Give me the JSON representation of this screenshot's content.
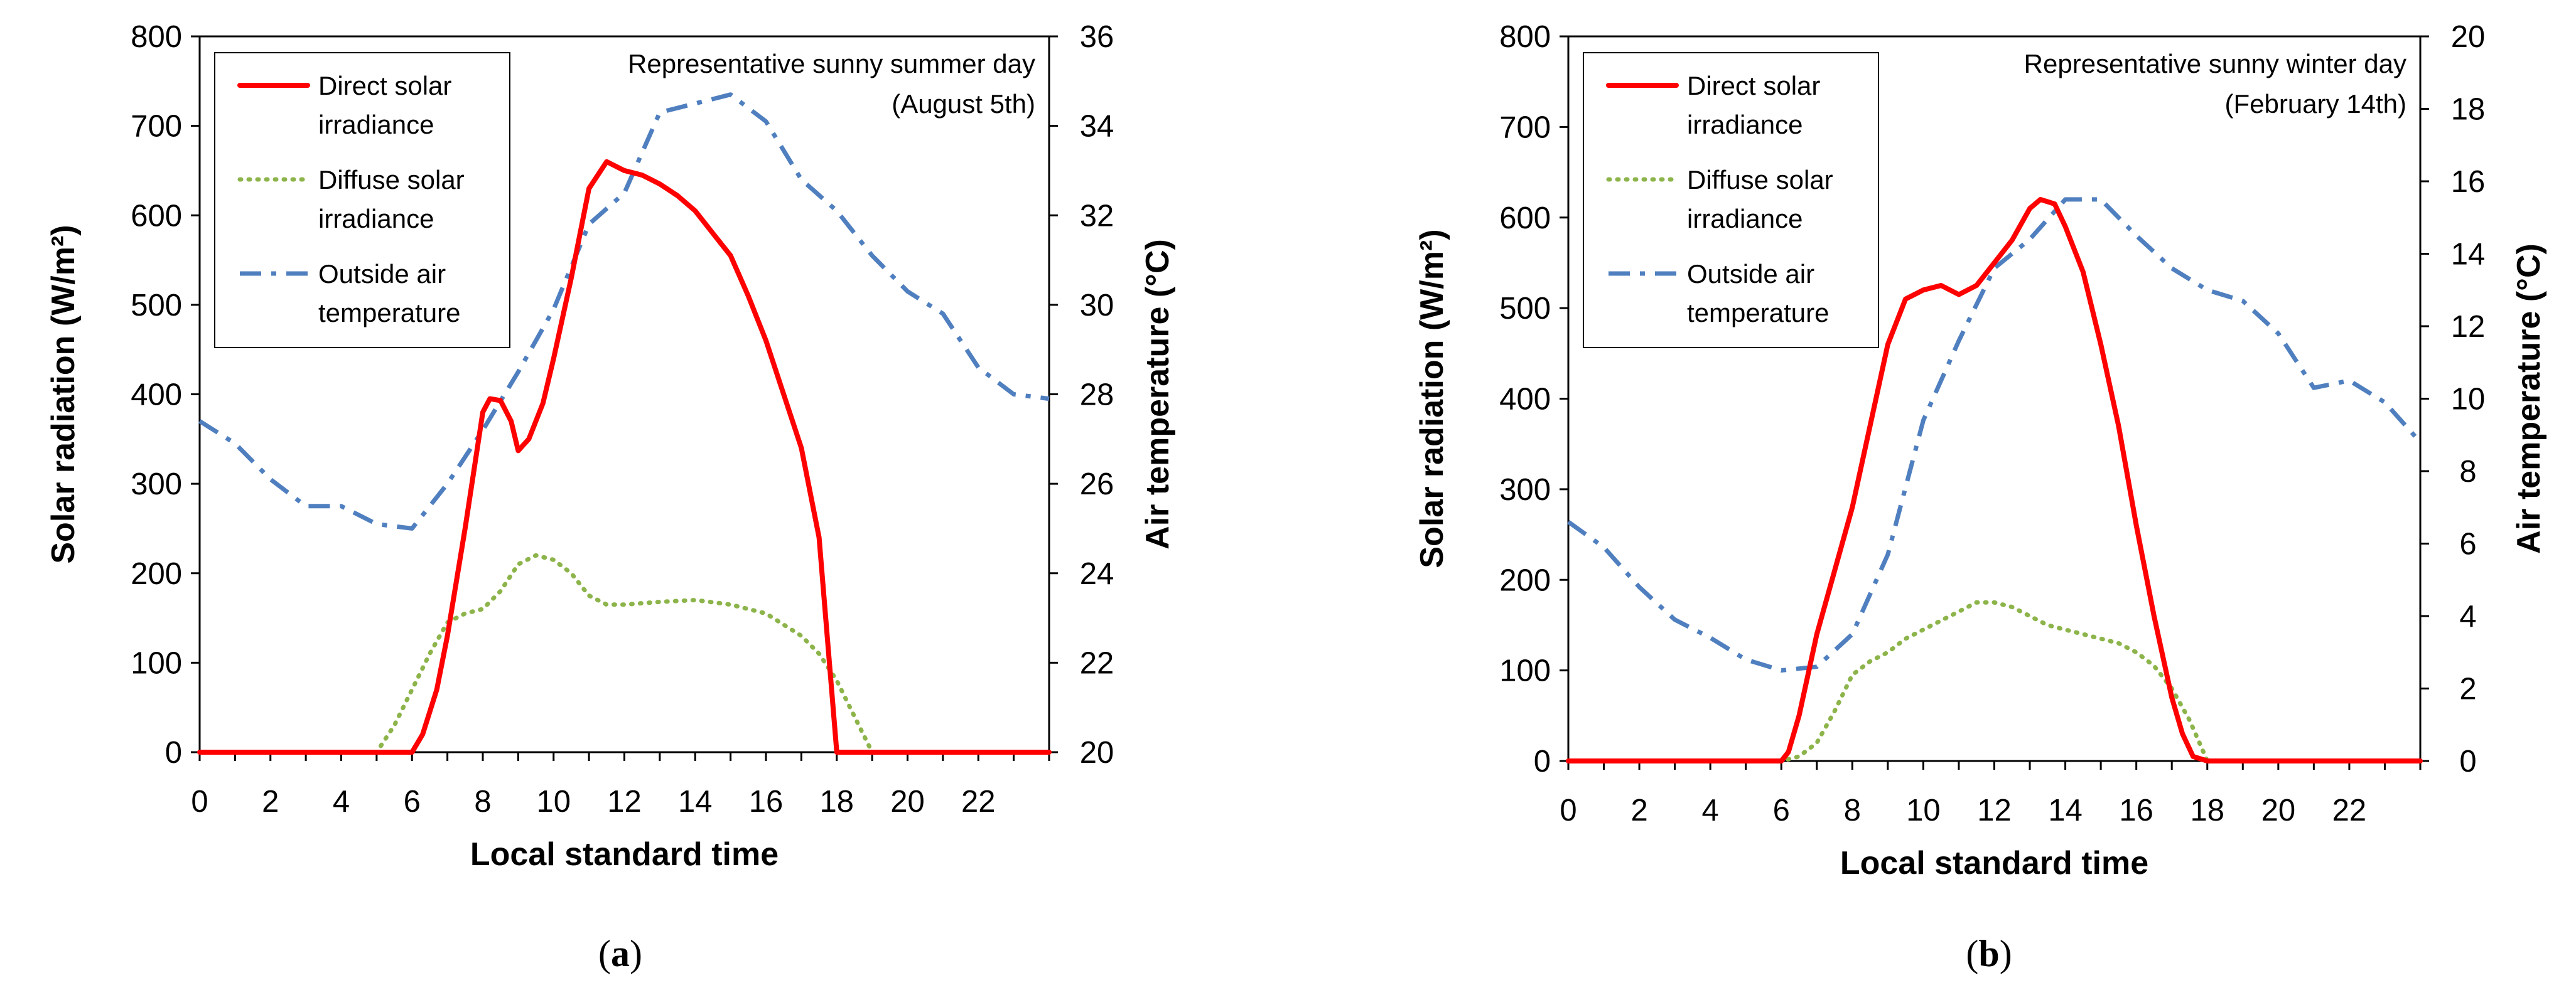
{
  "chart_data": [
    {
      "type": "line",
      "caption": "a",
      "annotation": [
        "Representative sunny summer day",
        "(August 5th)"
      ],
      "xlabel": "Local standard time",
      "ylabel": "Solar radiation (W/m²)",
      "y2label": "Air temperature (°C)",
      "xlim": [
        0,
        24
      ],
      "ylim": [
        0,
        800
      ],
      "y2lim": [
        20,
        36
      ],
      "xticks": [
        "0",
        "2",
        "4",
        "6",
        "8",
        "10",
        "12",
        "14",
        "16",
        "18",
        "20",
        "22"
      ],
      "yticks": [
        "0",
        "100",
        "200",
        "300",
        "400",
        "500",
        "600",
        "700",
        "800"
      ],
      "y2ticks": [
        "20",
        "22",
        "24",
        "26",
        "28",
        "30",
        "32",
        "34",
        "36"
      ],
      "legend": [
        [
          "Direct solar",
          "irradiance"
        ],
        [
          "Diffuse solar",
          "irradiance"
        ],
        [
          "Outside air",
          "temperature"
        ]
      ],
      "colors": {
        "direct": "#ff0000",
        "diffuse": "#8cb44a",
        "temp": "#4f7fbf"
      },
      "series": [
        {
          "name": "Direct solar irradiance",
          "axis": "left",
          "style": "solid",
          "x": [
            0,
            1,
            2,
            3,
            4,
            5,
            6,
            6.3,
            6.7,
            7,
            7.5,
            8,
            8.2,
            8.5,
            8.8,
            9,
            9.3,
            9.7,
            10,
            10.5,
            11,
            11.5,
            12,
            12.5,
            13,
            13.5,
            14,
            14.5,
            15,
            15.5,
            16,
            16.5,
            17,
            17.5,
            18,
            18.5,
            19,
            20,
            21,
            22,
            23,
            24
          ],
          "values": [
            0,
            0,
            0,
            0,
            0,
            0,
            0,
            20,
            70,
            130,
            250,
            380,
            395,
            393,
            370,
            337,
            350,
            390,
            440,
            530,
            630,
            660,
            650,
            645,
            635,
            622,
            605,
            580,
            555,
            510,
            460,
            400,
            340,
            240,
            0,
            0,
            0,
            0,
            0,
            0,
            0,
            0
          ]
        },
        {
          "name": "Diffuse solar irradiance",
          "axis": "left",
          "style": "dotted",
          "x": [
            0,
            1,
            2,
            3,
            4,
            5,
            5.5,
            6,
            6.5,
            7,
            7.5,
            8,
            8.5,
            9,
            9.5,
            10,
            10.5,
            11,
            11.5,
            12,
            13,
            14,
            15,
            16,
            17,
            17.5,
            18,
            18.5,
            19,
            20,
            21,
            22,
            23,
            24
          ],
          "values": [
            0,
            0,
            0,
            0,
            0,
            0,
            30,
            70,
            110,
            145,
            155,
            160,
            180,
            210,
            220,
            215,
            200,
            175,
            165,
            165,
            168,
            170,
            165,
            155,
            130,
            110,
            80,
            40,
            0,
            0,
            0,
            0,
            0,
            0
          ]
        },
        {
          "name": "Outside air temperature",
          "axis": "right",
          "style": "dashdot",
          "x": [
            0,
            1,
            2,
            3,
            4,
            5,
            6,
            7,
            8,
            9,
            10,
            11,
            12,
            13,
            14,
            15,
            16,
            17,
            18,
            19,
            20,
            21,
            22,
            23,
            24
          ],
          "values": [
            27.4,
            26.9,
            26.1,
            25.5,
            25.5,
            25.1,
            25.0,
            26.0,
            27.2,
            28.5,
            29.9,
            31.8,
            32.5,
            34.3,
            34.5,
            34.7,
            34.1,
            32.8,
            32.1,
            31.1,
            30.3,
            29.8,
            28.6,
            28.0,
            27.9
          ]
        }
      ]
    },
    {
      "type": "line",
      "caption": "b",
      "annotation": [
        "Representative sunny winter day",
        "(February 14th)"
      ],
      "xlabel": "Local standard time",
      "ylabel": "Solar radiation (W/m²)",
      "y2label": "Air temperature (°C)",
      "xlim": [
        0,
        24
      ],
      "ylim": [
        0,
        800
      ],
      "y2lim": [
        0,
        20
      ],
      "xticks": [
        "0",
        "2",
        "4",
        "6",
        "8",
        "10",
        "12",
        "14",
        "16",
        "18",
        "20",
        "22"
      ],
      "yticks": [
        "0",
        "100",
        "200",
        "300",
        "400",
        "500",
        "600",
        "700",
        "800"
      ],
      "y2ticks": [
        "0",
        "2",
        "4",
        "6",
        "8",
        "10",
        "12",
        "14",
        "16",
        "18",
        "20"
      ],
      "legend": [
        [
          "Direct solar",
          "irradiance"
        ],
        [
          "Diffuse solar",
          "irradiance"
        ],
        [
          "Outside air",
          "temperature"
        ]
      ],
      "colors": {
        "direct": "#ff0000",
        "diffuse": "#8cb44a",
        "temp": "#4f7fbf"
      },
      "series": [
        {
          "name": "Direct solar irradiance",
          "axis": "left",
          "style": "solid",
          "x": [
            0,
            1,
            2,
            3,
            4,
            5,
            6,
            6.2,
            6.5,
            7,
            7.5,
            8,
            8.5,
            9,
            9.5,
            10,
            10.5,
            11,
            11.5,
            12,
            12.5,
            13,
            13.3,
            13.7,
            14,
            14.5,
            15,
            15.5,
            16,
            16.5,
            17,
            17.3,
            17.6,
            18,
            19,
            20,
            21,
            22,
            23,
            24
          ],
          "values": [
            0,
            0,
            0,
            0,
            0,
            0,
            0,
            10,
            50,
            140,
            210,
            280,
            370,
            460,
            510,
            520,
            525,
            515,
            525,
            550,
            575,
            610,
            620,
            615,
            590,
            540,
            460,
            370,
            260,
            160,
            70,
            30,
            5,
            0,
            0,
            0,
            0,
            0,
            0,
            0
          ]
        },
        {
          "name": "Diffuse solar irradiance",
          "axis": "left",
          "style": "dotted",
          "x": [
            0,
            1,
            2,
            3,
            4,
            5,
            6,
            6.5,
            7,
            7.5,
            8,
            8.5,
            9,
            9.5,
            10,
            10.5,
            11,
            11.5,
            12,
            12.5,
            13,
            13.5,
            14,
            14.5,
            15,
            15.5,
            16,
            16.5,
            17,
            17.5,
            18,
            19,
            20,
            21,
            22,
            23,
            24
          ],
          "values": [
            0,
            0,
            0,
            0,
            0,
            0,
            0,
            5,
            20,
            55,
            95,
            110,
            120,
            135,
            145,
            155,
            165,
            175,
            175,
            170,
            160,
            150,
            145,
            140,
            135,
            130,
            120,
            105,
            80,
            45,
            0,
            0,
            0,
            0,
            0,
            0,
            0
          ]
        },
        {
          "name": "Outside air temperature",
          "axis": "right",
          "style": "dashdot",
          "x": [
            0,
            1,
            2,
            3,
            4,
            5,
            6,
            7,
            8,
            9,
            10,
            11,
            12,
            13,
            14,
            15,
            16,
            17,
            18,
            19,
            20,
            21,
            22,
            23,
            24
          ],
          "values": [
            6.6,
            5.9,
            4.8,
            3.9,
            3.4,
            2.8,
            2.5,
            2.6,
            3.5,
            5.7,
            9.4,
            11.6,
            13.6,
            14.4,
            15.5,
            15.5,
            14.5,
            13.6,
            13.0,
            12.7,
            11.8,
            10.3,
            10.5,
            9.9,
            8.8
          ]
        }
      ]
    }
  ]
}
